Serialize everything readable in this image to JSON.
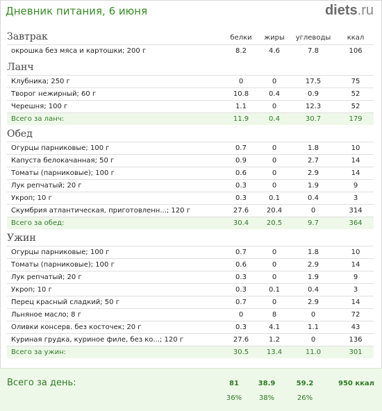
{
  "header": {
    "title": "Дневник питания, 6 июня",
    "logo_main": "diets",
    "logo_tld": ".ru"
  },
  "columns": [
    "белки",
    "жиры",
    "углеводы",
    "ккал"
  ],
  "sections": [
    {
      "name": "Завтрак",
      "items": [
        [
          "окрошка без мяса и картошки; 200 г",
          "8.2",
          "4.6",
          "7.8",
          "106"
        ]
      ],
      "total": null
    },
    {
      "name": "Ланч",
      "items": [
        [
          "Клубника; 250 г",
          "0",
          "0",
          "17.5",
          "75"
        ],
        [
          "Творог нежирный; 60 г",
          "10.8",
          "0.4",
          "0.9",
          "52"
        ],
        [
          "Черешня; 100 г",
          "1.1",
          "0",
          "12.3",
          "52"
        ]
      ],
      "total": [
        "Всего за ланч:",
        "11.9",
        "0.4",
        "30.7",
        "179"
      ]
    },
    {
      "name": "Обед",
      "items": [
        [
          "Огурцы парниковые; 100 г",
          "0.7",
          "0",
          "1.8",
          "10"
        ],
        [
          "Капуста белокачанная; 50 г",
          "0.9",
          "0",
          "2.7",
          "14"
        ],
        [
          "Томаты (парниковые); 100 г",
          "0.6",
          "0",
          "2.9",
          "14"
        ],
        [
          "Лук репчатый; 20 г",
          "0.3",
          "0",
          "1.9",
          "9"
        ],
        [
          "Укроп; 10 г",
          "0.3",
          "0.1",
          "0.4",
          "3"
        ],
        [
          "Скумбрия атлантическая, приготовленн...; 120 г",
          "27.6",
          "20.4",
          "0",
          "314"
        ]
      ],
      "total": [
        "Всего за обед:",
        "30.4",
        "20.5",
        "9.7",
        "364"
      ]
    },
    {
      "name": "Ужин",
      "items": [
        [
          "Огурцы парниковые; 100 г",
          "0.7",
          "0",
          "1.8",
          "10"
        ],
        [
          "Томаты (парниковые); 100 г",
          "0.6",
          "0",
          "2.9",
          "14"
        ],
        [
          "Лук репчатый; 20 г",
          "0.3",
          "0",
          "1.9",
          "9"
        ],
        [
          "Укроп; 10 г",
          "0.3",
          "0.1",
          "0.4",
          "3"
        ],
        [
          "Перец красный сладкий; 50 г",
          "0.7",
          "0",
          "2.9",
          "14"
        ],
        [
          "Льняное масло; 8 г",
          "0",
          "8",
          "0",
          "72"
        ],
        [
          "Оливки консерв. без косточек; 20 г",
          "0.3",
          "4.1",
          "1.1",
          "43"
        ],
        [
          "Куриная грудка, куриное филе, без ко...; 120 г",
          "27.6",
          "1.2",
          "0",
          "136"
        ]
      ],
      "total": [
        "Всего за ужин:",
        "30.5",
        "13.4",
        "11.0",
        "301"
      ]
    }
  ],
  "day_total": {
    "label": "Всего за день:",
    "protein": "81",
    "fat": "38.9",
    "carbs": "59.2",
    "kcal": "950 ккал",
    "protein_pct": "36%",
    "fat_pct": "38%",
    "carbs_pct": "26%"
  }
}
